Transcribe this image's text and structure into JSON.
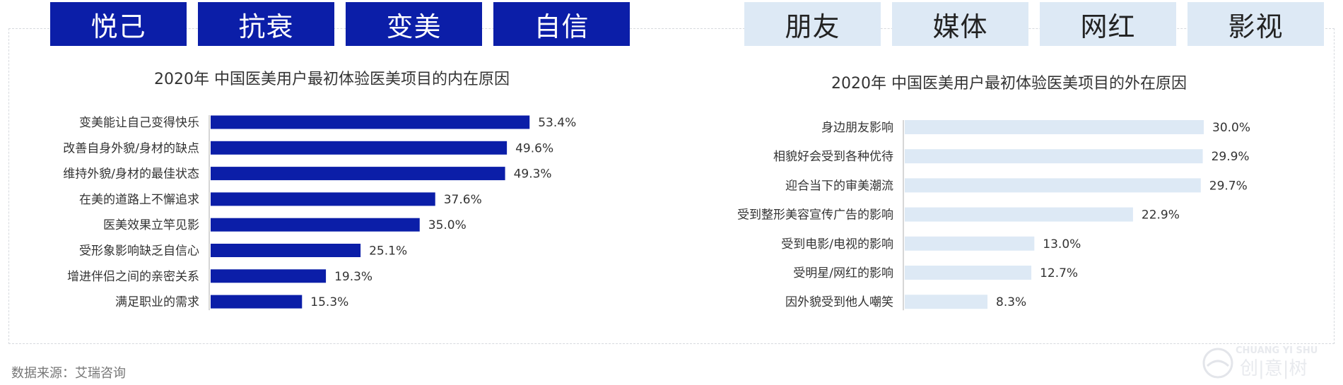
{
  "colors": {
    "dark_bar": "#0b1ea8",
    "light_bar": "#dde9f5",
    "label_text": "#333333"
  },
  "header": {
    "left_tags": [
      "悦己",
      "抗衰",
      "变美",
      "自信"
    ],
    "right_tags": [
      "朋友",
      "媒体",
      "网红",
      "影视"
    ]
  },
  "footer": {
    "source": "数据来源：艾瑞咨询",
    "logo_text": "CHUANG YI SHU",
    "logo_glyphs": "创|意|树"
  },
  "chart_data": [
    {
      "type": "bar",
      "orientation": "horizontal",
      "title": "2020年 中国医美用户最初体验医美项目的内在原因",
      "categories": [
        "变美能让自己变得快乐",
        "改善自身外貌/身材的缺点",
        "维持外貌/身材的最佳状态",
        "在美的道路上不懈追求",
        "医美效果立竿见影",
        "受形象影响缺乏自信心",
        "增进伴侣之间的亲密关系",
        "满足职业的需求"
      ],
      "values": [
        53.4,
        49.6,
        49.3,
        37.6,
        35.0,
        25.1,
        19.3,
        15.3
      ],
      "value_labels": [
        "53.4%",
        "49.6%",
        "49.3%",
        "37.6%",
        "35.0%",
        "25.1%",
        "19.3%",
        "15.3%"
      ],
      "unit": "%",
      "bar_color": "#0b1ea8"
    },
    {
      "type": "bar",
      "orientation": "horizontal",
      "title": "2020年 中国医美用户最初体验医美项目的外在原因",
      "categories": [
        "身边朋友影响",
        "相貌好会受到各种优待",
        "迎合当下的审美潮流",
        "受到整形美容宣传广告的影响",
        "受到电影/电视的影响",
        "受明星/网红的影响",
        "因外貌受到他人嘲笑"
      ],
      "values": [
        30.0,
        29.9,
        29.7,
        22.9,
        13.0,
        12.7,
        8.3
      ],
      "value_labels": [
        "30.0%",
        "29.9%",
        "29.7%",
        "22.9%",
        "13.0%",
        "12.7%",
        "8.3%"
      ],
      "unit": "%",
      "bar_color": "#dde9f5"
    }
  ]
}
